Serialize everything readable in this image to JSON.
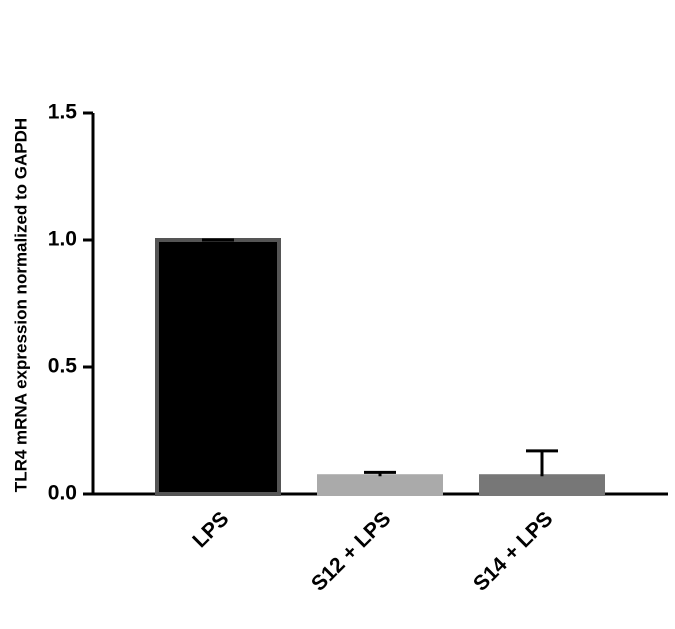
{
  "chart_data": {
    "type": "bar",
    "y_label": "TLR4 mRNA expression normalized to GAPDH",
    "categories": [
      "LPS",
      "S12 + LPS",
      "S14 + LPS"
    ],
    "values": [
      1.0,
      0.07,
      0.07
    ],
    "errors": [
      0,
      0.015,
      0.1
    ],
    "colors": [
      "#000000",
      "#aaaaaa",
      "#777777"
    ],
    "ylim": [
      0,
      1.5
    ],
    "yticks": [
      {
        "value": 0,
        "label": "0.0"
      },
      0.5,
      {
        "value": 1,
        "label": "1.0"
      },
      1.5
    ]
  }
}
